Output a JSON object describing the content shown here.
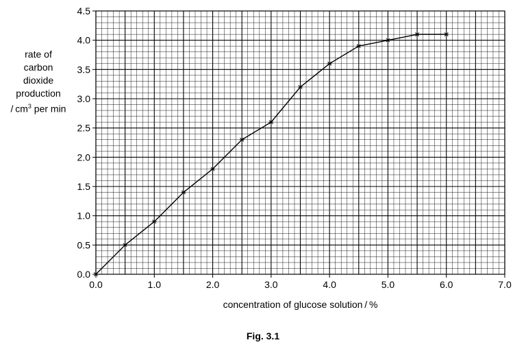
{
  "chart_data": {
    "type": "line",
    "x": [
      0.0,
      0.5,
      1.0,
      1.5,
      2.0,
      2.5,
      3.0,
      3.5,
      4.0,
      4.5,
      5.0,
      5.5,
      6.0
    ],
    "series": [
      {
        "values": [
          0.0,
          0.5,
          0.9,
          1.4,
          1.8,
          2.3,
          2.6,
          3.2,
          3.6,
          3.9,
          4.0,
          4.1,
          4.1
        ]
      }
    ],
    "xlim": [
      0.0,
      7.0
    ],
    "ylim": [
      0.0,
      4.5
    ],
    "xticks": [
      "0.0",
      "1.0",
      "2.0",
      "3.0",
      "4.0",
      "5.0",
      "6.0",
      "7.0"
    ],
    "yticks": [
      "0.0",
      "0.5",
      "1.0",
      "1.5",
      "2.0",
      "2.5",
      "3.0",
      "3.5",
      "4.0",
      "4.5"
    ],
    "xlabel": "concentration of glucose solution / %",
    "ylabel_lines": [
      "rate of",
      "carbon",
      "dioxide",
      "production"
    ],
    "ylabel_unit_prefix": "/ cm",
    "ylabel_unit_sup": "3",
    "ylabel_unit_suffix": " per min",
    "grid": true,
    "marker": "asterisk",
    "caption": "Fig. 3.1"
  }
}
